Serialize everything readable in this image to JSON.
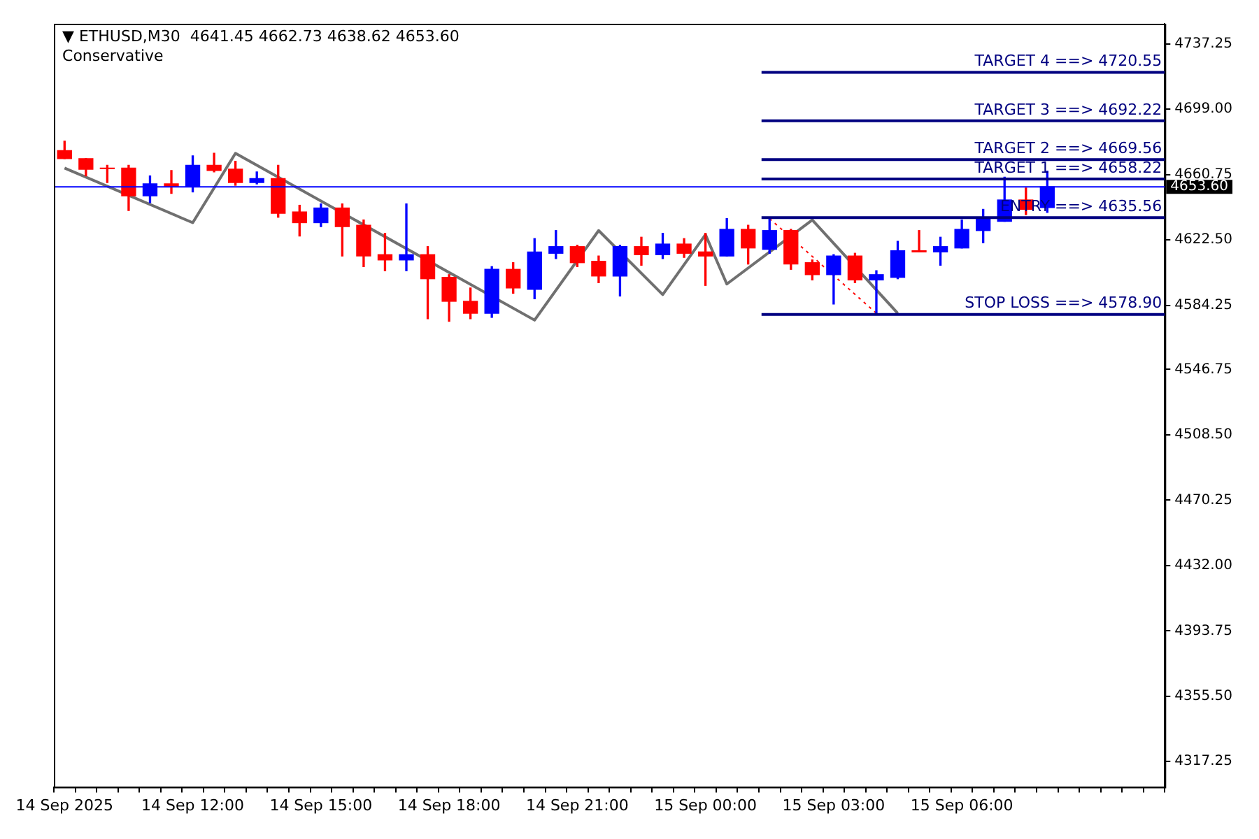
{
  "chart_data": {
    "type": "candlestick",
    "title": "▼ ETHUSD,M30  4641.45 4662.73 4638.62 4653.60",
    "subtitle": "Conservative",
    "categories": [
      "14 Sep 2025",
      null,
      null,
      null,
      null,
      null,
      "14 Sep 12:00",
      null,
      null,
      null,
      null,
      null,
      "14 Sep 15:00",
      null,
      null,
      null,
      null,
      null,
      "14 Sep 18:00",
      null,
      null,
      null,
      null,
      null,
      "14 Sep 21:00",
      null,
      null,
      null,
      null,
      null,
      "15 Sep 00:00",
      null,
      null,
      null,
      null,
      null,
      "15 Sep 03:00",
      null,
      null,
      null,
      null,
      null,
      "15 Sep 06:00",
      null,
      null,
      null,
      null,
      null,
      null,
      null,
      null,
      null
    ],
    "ohlc": [
      [
        4674.8,
        4680.3,
        4670.1,
        4670.1
      ],
      [
        4670.1,
        4670.1,
        4660.0,
        4663.9
      ],
      [
        4664.6,
        4666.2,
        4656.1,
        4664.2
      ],
      [
        4664.6,
        4666.2,
        4639.7,
        4648.3
      ],
      [
        4648.3,
        4660.0,
        4644.3,
        4655.3
      ],
      [
        4655.3,
        4663.1,
        4649.8,
        4653.7
      ],
      [
        4653.7,
        4671.7,
        4650.6,
        4666.2
      ],
      [
        4666.2,
        4673.2,
        4662.3,
        4663.1
      ],
      [
        4663.9,
        4668.5,
        4654.5,
        4656.1
      ],
      [
        4656.1,
        4662.3,
        4655.3,
        4658.4
      ],
      [
        4658.4,
        4666.2,
        4635.8,
        4638.1
      ],
      [
        4638.9,
        4642.8,
        4624.8,
        4632.6
      ],
      [
        4632.6,
        4643.6,
        4630.3,
        4641.2
      ],
      [
        4641.2,
        4643.6,
        4613.1,
        4630.3
      ],
      [
        4631.1,
        4634.2,
        4606.9,
        4613.1
      ],
      [
        4613.9,
        4626.4,
        4604.5,
        4610.8
      ],
      [
        4610.8,
        4643.6,
        4604.5,
        4613.9
      ],
      [
        4613.9,
        4618.6,
        4576.4,
        4599.8
      ],
      [
        4600.6,
        4602.2,
        4574.9,
        4586.6
      ],
      [
        4586.6,
        4594.4,
        4576.4,
        4579.6
      ],
      [
        4579.6,
        4606.9,
        4577.2,
        4605.3
      ],
      [
        4605.3,
        4609.2,
        4591.3,
        4594.4
      ],
      [
        4593.6,
        4623.3,
        4588.1,
        4615.5
      ],
      [
        4614.7,
        4628.0,
        4611.6,
        4618.6
      ],
      [
        4618.6,
        4619.4,
        4606.9,
        4609.2
      ],
      [
        4610.0,
        4613.1,
        4597.5,
        4601.4
      ],
      [
        4601.4,
        4619.4,
        4589.7,
        4618.6
      ],
      [
        4618.6,
        4624.1,
        4607.7,
        4613.9
      ],
      [
        4613.9,
        4626.4,
        4611.6,
        4620.1
      ],
      [
        4620.1,
        4623.3,
        4612.3,
        4614.7
      ],
      [
        4615.5,
        4626.4,
        4595.9,
        4613.1
      ],
      [
        4613.1,
        4635.0,
        4613.1,
        4628.7
      ],
      [
        4628.7,
        4631.1,
        4608.4,
        4617.8
      ],
      [
        4617.0,
        4635.0,
        4614.7,
        4628.0
      ],
      [
        4628.0,
        4628.7,
        4605.3,
        4608.4
      ],
      [
        4609.2,
        4610.8,
        4599.1,
        4602.2
      ],
      [
        4602.2,
        4613.9,
        4585.0,
        4613.1
      ],
      [
        4613.1,
        4614.7,
        4597.5,
        4599.1
      ],
      [
        4599.1,
        4604.5,
        4579.6,
        4602.2
      ],
      [
        4600.6,
        4621.7,
        4599.8,
        4616.2
      ],
      [
        4616.2,
        4628.0,
        4615.5,
        4615.5
      ],
      [
        4615.5,
        4624.1,
        4607.7,
        4618.6
      ],
      [
        4617.8,
        4634.2,
        4617.8,
        4628.7
      ],
      [
        4628.0,
        4640.4,
        4620.9,
        4635.0
      ],
      [
        4633.4,
        4659.2,
        4633.4,
        4645.9
      ],
      [
        4645.9,
        4652.9,
        4637.3,
        4640.4
      ],
      [
        4641.45,
        4662.73,
        4638.62,
        4653.6
      ],
      null,
      null,
      null,
      null,
      null
    ],
    "colors": [
      "#ff0000",
      "#ff0000",
      "#ff0000",
      "#ff0000",
      "#0000ff",
      "#ff0000",
      "#0000ff",
      "#ff0000",
      "#ff0000",
      "#0000ff",
      "#ff0000",
      "#ff0000",
      "#0000ff",
      "#ff0000",
      "#ff0000",
      "#ff0000",
      "#0000ff",
      "#ff0000",
      "#ff0000",
      "#ff0000",
      "#0000ff",
      "#ff0000",
      "#0000ff",
      "#0000ff",
      "#ff0000",
      "#ff0000",
      "#0000ff",
      "#ff0000",
      "#0000ff",
      "#ff0000",
      "#ff0000",
      "#0000ff",
      "#ff0000",
      "#0000ff",
      "#ff0000",
      "#ff0000",
      "#0000ff",
      "#ff0000",
      "#0000ff",
      "#0000ff",
      "#ff0000",
      "#0000ff",
      "#0000ff",
      "#0000ff",
      "#0000ff",
      "#ff0000",
      "#0000ff",
      null,
      null,
      null,
      null,
      null
    ],
    "series": [
      {
        "type": "line",
        "color": "#707070",
        "line_style": "solid",
        "values": [
          4664.6,
          null,
          null,
          null,
          null,
          null,
          4632.6,
          null,
          4673.2,
          null,
          null,
          null,
          null,
          null,
          null,
          null,
          null,
          null,
          null,
          null,
          null,
          null,
          4575.6,
          null,
          null,
          4628.0,
          null,
          null,
          4590.5,
          null,
          4625.6,
          4596.7,
          null,
          null,
          null,
          4634.2,
          null,
          null,
          null,
          4579.6,
          null,
          null,
          null,
          null,
          null,
          null,
          null,
          null,
          null,
          null,
          null,
          null
        ]
      },
      {
        "type": "line",
        "color": "#ff0000",
        "line_style": "dotted",
        "values": [
          null,
          null,
          null,
          null,
          null,
          null,
          null,
          null,
          null,
          null,
          null,
          null,
          null,
          null,
          null,
          null,
          null,
          null,
          null,
          null,
          null,
          null,
          null,
          null,
          null,
          null,
          null,
          null,
          null,
          null,
          null,
          null,
          null,
          4635.0,
          null,
          null,
          null,
          null,
          4579.6,
          null,
          null,
          null,
          null,
          null,
          null,
          null,
          null,
          null,
          null,
          null,
          null,
          null
        ]
      }
    ],
    "ref_lines": [
      {
        "axis": "y",
        "value": 4720.55,
        "label": "TARGET 4 ==> 4720.55",
        "color": "#000080"
      },
      {
        "axis": "y",
        "value": 4692.22,
        "label": "TARGET 3 ==> 4692.22",
        "color": "#000080"
      },
      {
        "axis": "y",
        "value": 4669.56,
        "label": "TARGET 2 ==> 4669.56",
        "color": "#000080"
      },
      {
        "axis": "y",
        "value": 4658.22,
        "label": "TARGET 1 ==> 4658.22",
        "color": "#000080"
      },
      {
        "axis": "y",
        "value": 4635.56,
        "label": "ENTRY ==> 4635.56",
        "color": "#000080"
      },
      {
        "axis": "y",
        "value": 4578.9,
        "label": "STOP LOSS ==> 4578.90",
        "color": "#000080"
      },
      {
        "axis": "y",
        "value": 4653.6,
        "label": "4653.60",
        "color": "#0000ff",
        "line_style": "solid"
      }
    ],
    "ylim": [
      4302.4,
      4749.0
    ],
    "yticks": [
      4317.25,
      {
        "value": 4355.5,
        "label": "4355.50"
      },
      4393.75,
      {
        "value": 4432,
        "label": "4432.00"
      },
      4470.25,
      {
        "value": 4508.5,
        "label": "4508.50"
      },
      4546.75,
      4584.25,
      {
        "value": 4622.5,
        "label": "4622.50"
      },
      4660.75,
      {
        "value": 4699,
        "label": "4699.00"
      },
      4737.25
    ],
    "legend": false,
    "grid": false
  }
}
